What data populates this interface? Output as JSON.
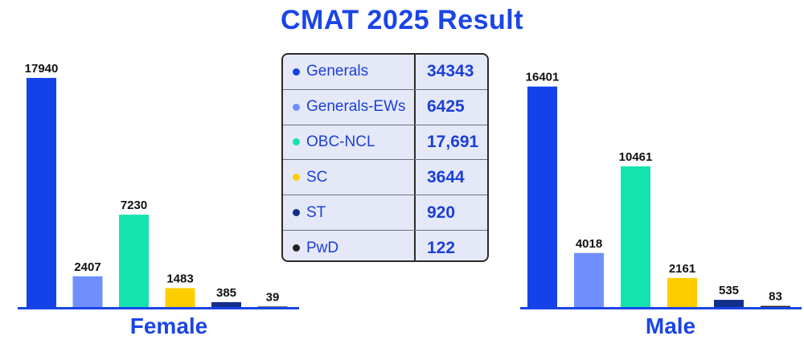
{
  "title": "CMAT 2025 Result",
  "legend": [
    {
      "label": "Generals",
      "value": "34343",
      "color": "#1242e8"
    },
    {
      "label": "Generals-EWs",
      "value": "6425",
      "color": "#6f8ffd"
    },
    {
      "label": "OBC-NCL",
      "value": "17,691",
      "color": "#14e3ad"
    },
    {
      "label": "SC",
      "value": "3644",
      "color": "#fece00"
    },
    {
      "label": "ST",
      "value": "920",
      "color": "#122f8c"
    },
    {
      "label": "PwD",
      "value": "122",
      "color": "#232323"
    }
  ],
  "chart_data": [
    {
      "type": "bar",
      "title": "Female",
      "categories": [
        "Generals",
        "Generals-EWs",
        "OBC-NCL",
        "SC",
        "ST",
        "PwD"
      ],
      "values": [
        17940,
        2407,
        7230,
        1483,
        385,
        39
      ],
      "colors": [
        "#1242e8",
        "#6f8ffd",
        "#14e3ad",
        "#fece00",
        "#122f8c",
        "#232323"
      ],
      "ylim": [
        0,
        18000
      ]
    },
    {
      "type": "bar",
      "title": "Male",
      "categories": [
        "Generals",
        "Generals-EWs",
        "OBC-NCL",
        "SC",
        "ST",
        "PwD"
      ],
      "values": [
        16401,
        4018,
        10461,
        2161,
        535,
        83
      ],
      "colors": [
        "#1242e8",
        "#6f8ffd",
        "#14e3ad",
        "#fece00",
        "#122f8c",
        "#232323"
      ],
      "ylim": [
        0,
        16500
      ]
    }
  ]
}
